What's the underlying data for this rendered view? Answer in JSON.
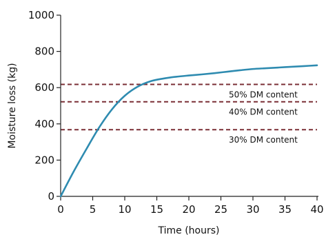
{
  "chart_data": {
    "type": "line",
    "xlabel": "Time (hours)",
    "ylabel": "Moisture loss (kg)",
    "xlim": [
      0,
      40
    ],
    "ylim": [
      0,
      1000
    ],
    "x_ticks": [
      0,
      5,
      10,
      15,
      20,
      25,
      30,
      35,
      40
    ],
    "y_ticks": [
      0,
      200,
      400,
      600,
      800,
      1000
    ],
    "grid": false,
    "series": [
      {
        "color": "#2e8bb0",
        "x": [
          0,
          2,
          4,
          6,
          8,
          10,
          12,
          14,
          16,
          18,
          20,
          22,
          24,
          26,
          28,
          30,
          32,
          34,
          36,
          38,
          40
        ],
        "y": [
          0,
          135,
          260,
          380,
          480,
          555,
          605,
          635,
          650,
          660,
          667,
          673,
          680,
          688,
          696,
          703,
          707,
          711,
          715,
          719,
          723
        ]
      }
    ],
    "reference_lines": [
      {
        "y": 618,
        "label": "50% DM content",
        "color": "#7a2e35",
        "style": "dashed"
      },
      {
        "y": 522,
        "label": "40% DM content",
        "color": "#7a2e35",
        "style": "dashed"
      },
      {
        "y": 368,
        "label": "30% DM content",
        "color": "#7a2e35",
        "style": "dashed"
      }
    ]
  }
}
